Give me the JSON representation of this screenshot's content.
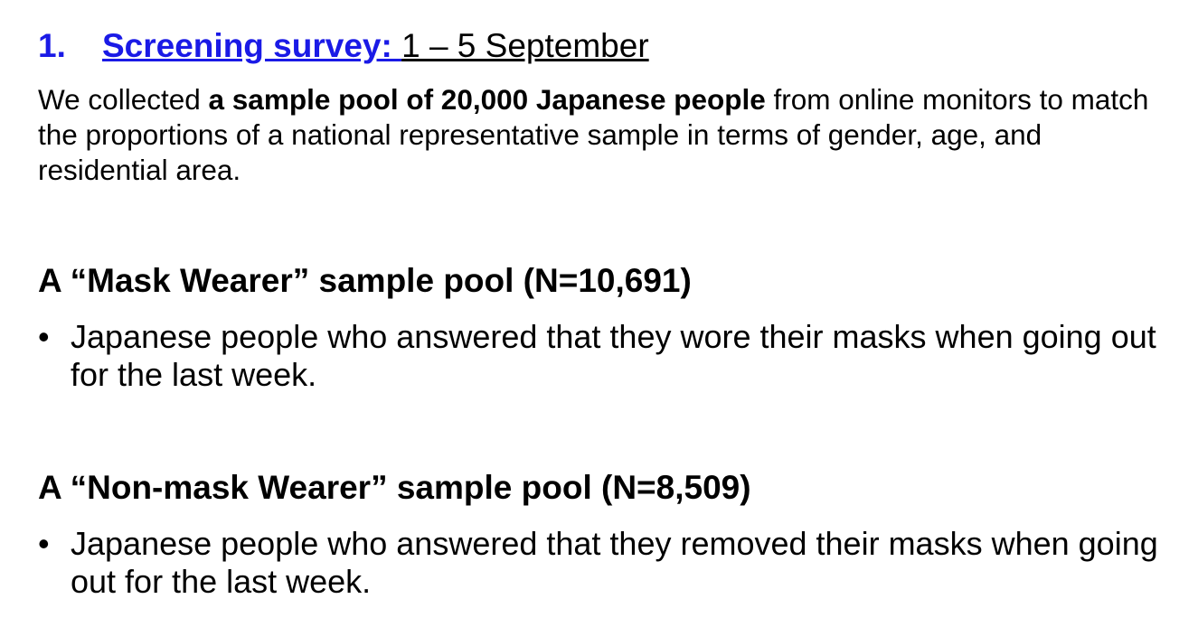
{
  "section": {
    "number": "1.",
    "title": "Screening survey: ",
    "date": "1 – 5 September"
  },
  "intro": {
    "part1": "We collected ",
    "bold": "a sample pool of 20,000 Japanese people",
    "part2": " from online monitors to match the proportions of a national representative sample in terms of gender, age, and residential area."
  },
  "pools": [
    {
      "title": "A “Mask Wearer” sample pool (N=10,691)",
      "bullet_symbol": "•",
      "bullet": "Japanese people who answered that they wore their masks when going out for the last week."
    },
    {
      "title": "A “Non-mask Wearer” sample pool (N=8,509)",
      "bullet_symbol": "•",
      "bullet": "Japanese people who answered that they removed their masks when going out for the last week."
    }
  ]
}
